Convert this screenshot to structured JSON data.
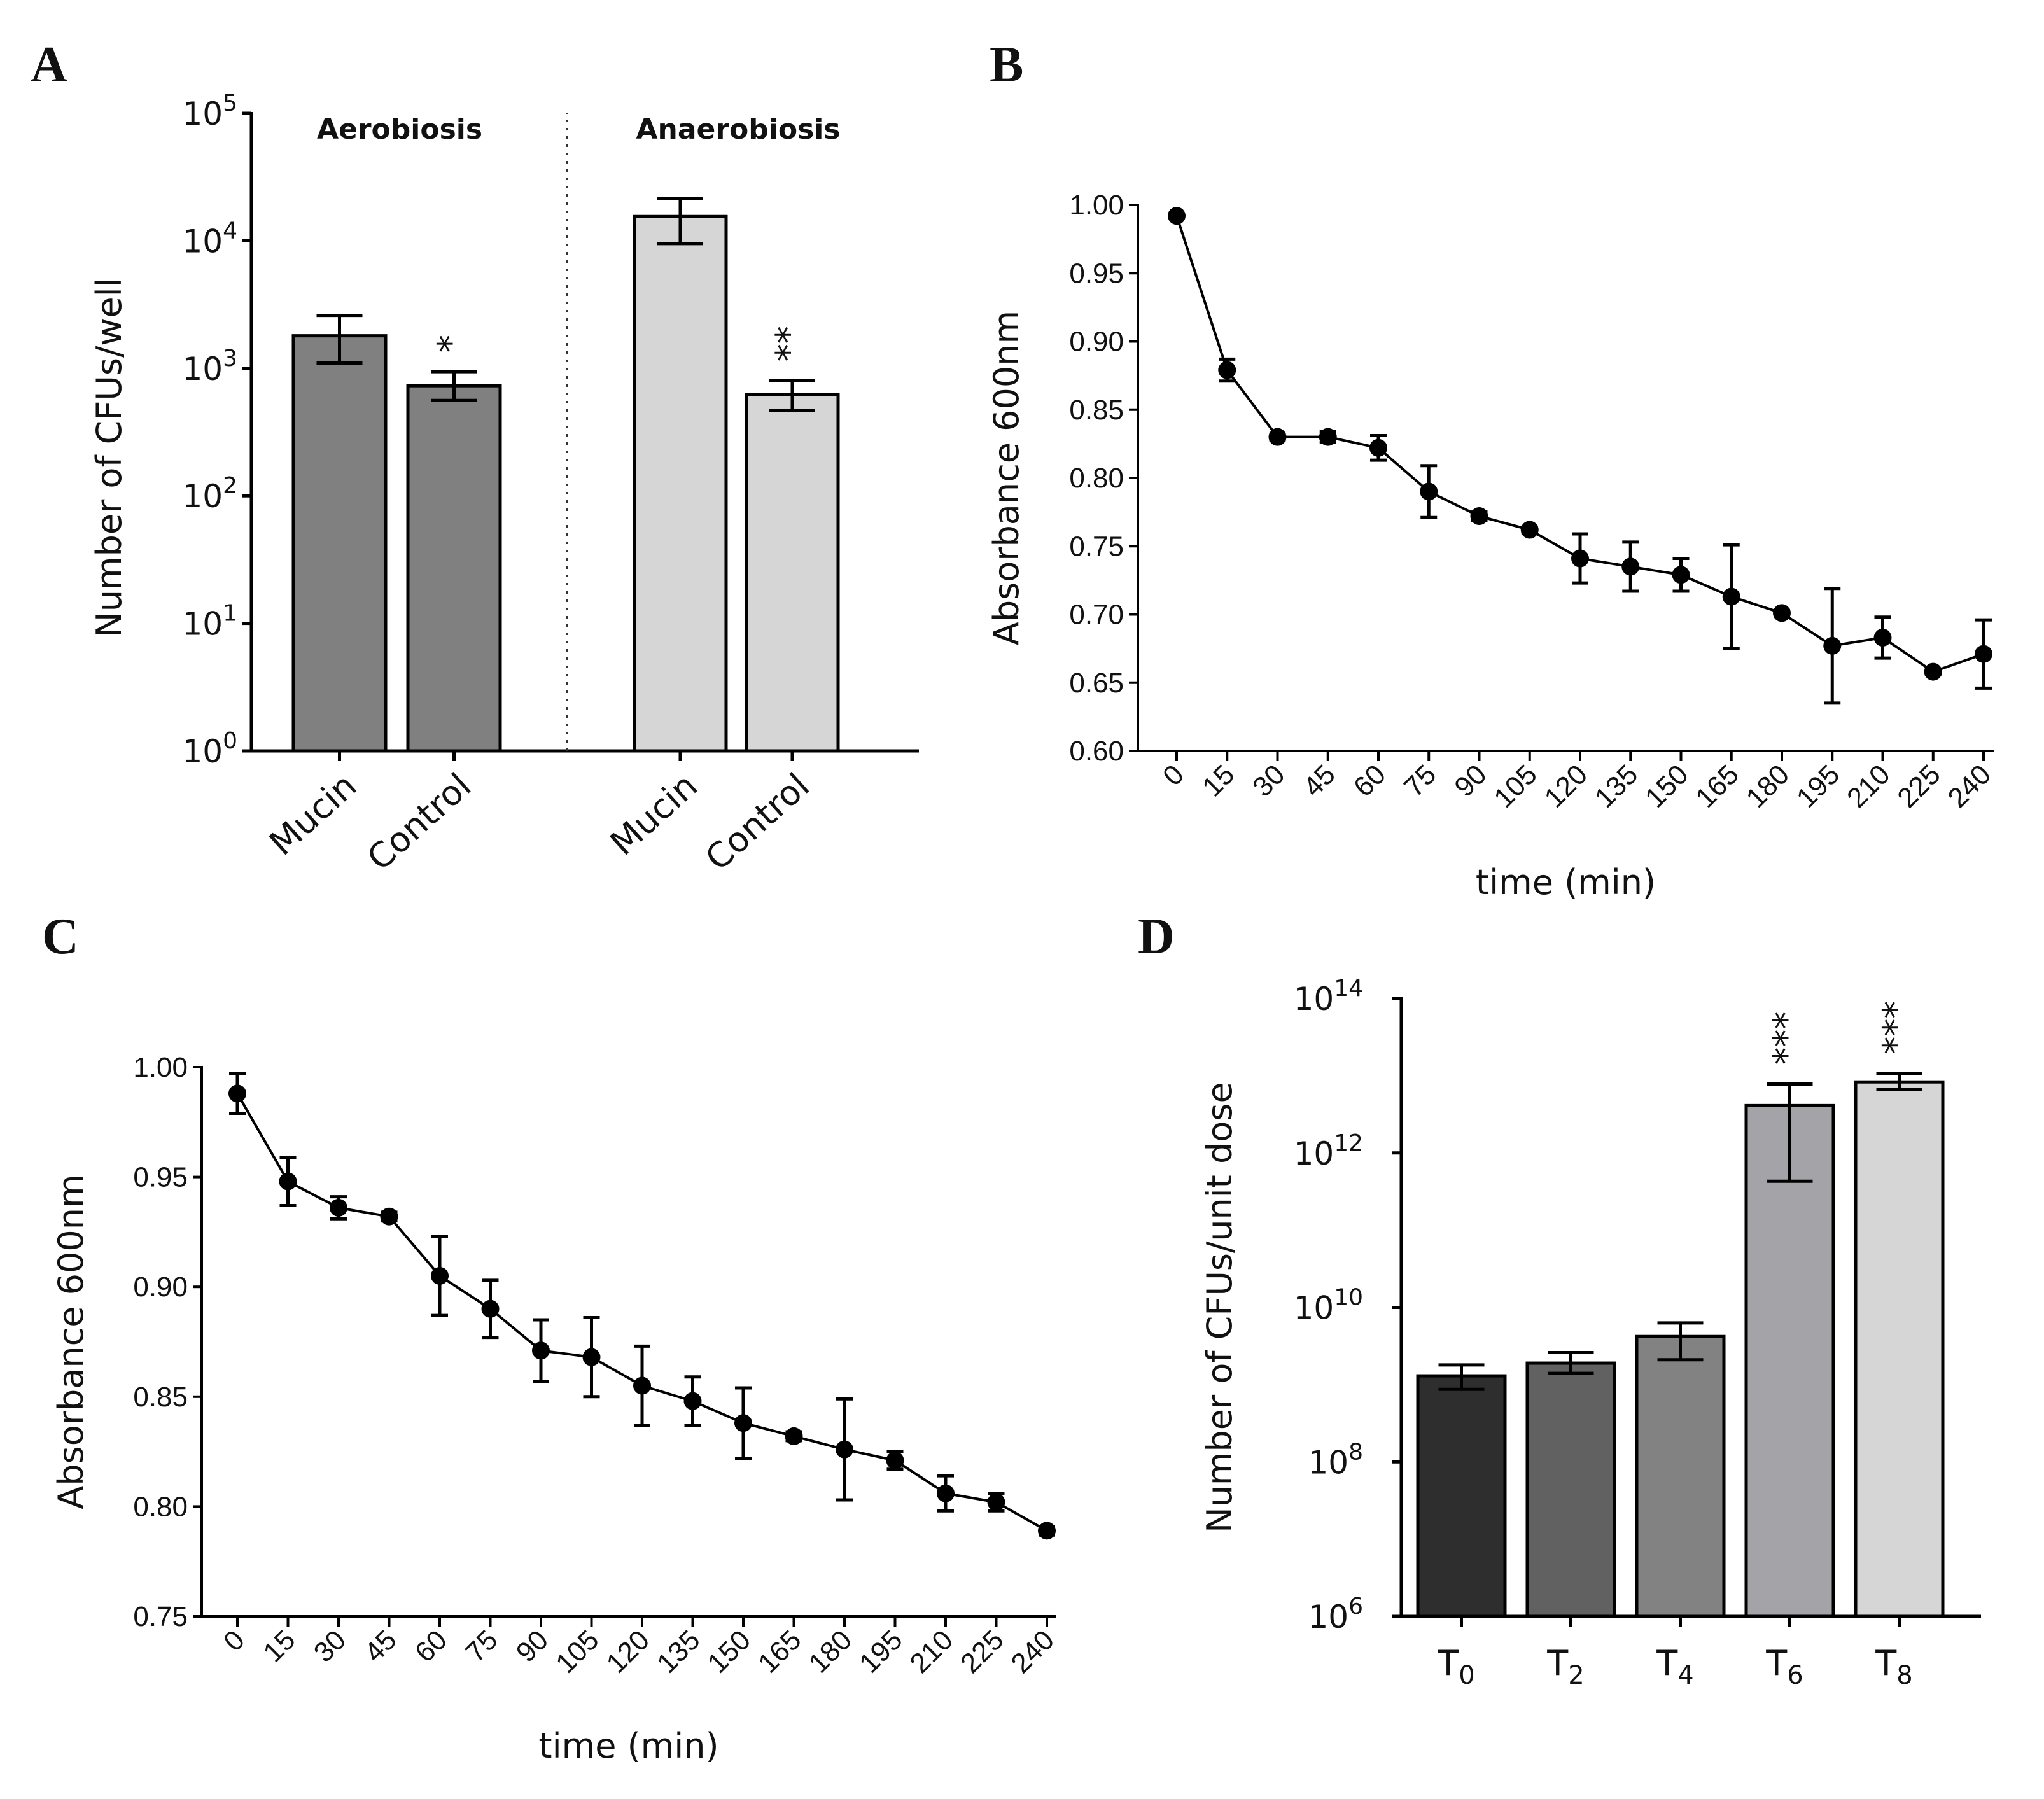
{
  "chart_data": [
    {
      "panel": "A",
      "type": "bar",
      "title": "",
      "ylabel": "Number of CFUs/well",
      "yscale": "log",
      "ylim": [
        1,
        100000
      ],
      "yticks": [
        {
          "base": "10",
          "exp": "0"
        },
        {
          "base": "10",
          "exp": "1"
        },
        {
          "base": "10",
          "exp": "2"
        },
        {
          "base": "10",
          "exp": "3"
        },
        {
          "base": "10",
          "exp": "4"
        },
        {
          "base": "10",
          "exp": "5"
        }
      ],
      "groups": [
        "Aerobiosis",
        "Anaerobiosis"
      ],
      "categories": [
        "Mucin",
        "Control",
        "Mucin",
        "Control"
      ],
      "group_of_category": [
        0,
        0,
        1,
        1
      ],
      "values": [
        1800,
        730,
        15500,
        620
      ],
      "err_low": [
        1100,
        560,
        9500,
        470
      ],
      "err_high": [
        2600,
        940,
        21500,
        800
      ],
      "significance": [
        "",
        "*",
        "",
        "**"
      ],
      "colors": [
        "#808080",
        "#808080",
        "#d6d6d6",
        "#d6d6d6"
      ]
    },
    {
      "panel": "B",
      "type": "line",
      "xlabel": "time (min)",
      "ylabel": "Absorbance 600nm",
      "ylim": [
        0.6,
        1.0
      ],
      "yticks": [
        "0.60",
        "0.65",
        "0.70",
        "0.75",
        "0.80",
        "0.85",
        "0.90",
        "0.95",
        "1.00"
      ],
      "x": [
        "0",
        "15",
        "30",
        "45",
        "60",
        "75",
        "90",
        "105",
        "120",
        "135",
        "150",
        "165",
        "180",
        "195",
        "210",
        "225",
        "240"
      ],
      "values": [
        0.992,
        0.879,
        0.83,
        0.83,
        0.822,
        0.79,
        0.772,
        0.762,
        0.741,
        0.735,
        0.729,
        0.713,
        0.701,
        0.677,
        0.683,
        0.658,
        0.671
      ],
      "err": [
        0.0,
        0.008,
        0.002,
        0.004,
        0.009,
        0.019,
        0.003,
        0.002,
        0.018,
        0.018,
        0.012,
        0.038,
        0.002,
        0.042,
        0.015,
        0.002,
        0.025
      ]
    },
    {
      "panel": "C",
      "type": "line",
      "xlabel": "time (min)",
      "ylabel": "Absorbance 600nm",
      "ylim": [
        0.75,
        1.0
      ],
      "yticks": [
        "0.75",
        "0.80",
        "0.85",
        "0.90",
        "0.95",
        "1.00"
      ],
      "x": [
        "0",
        "15",
        "30",
        "45",
        "60",
        "75",
        "90",
        "105",
        "120",
        "135",
        "150",
        "165",
        "180",
        "195",
        "210",
        "225",
        "240"
      ],
      "values": [
        0.988,
        0.948,
        0.936,
        0.932,
        0.905,
        0.89,
        0.871,
        0.868,
        0.855,
        0.848,
        0.838,
        0.832,
        0.826,
        0.821,
        0.806,
        0.802,
        0.789
      ],
      "err": [
        0.009,
        0.011,
        0.005,
        0.002,
        0.018,
        0.013,
        0.014,
        0.018,
        0.018,
        0.011,
        0.016,
        0.002,
        0.023,
        0.004,
        0.008,
        0.004,
        0.002
      ]
    },
    {
      "panel": "D",
      "type": "bar",
      "ylabel": "Number of CFUs/unit dose",
      "yscale": "log",
      "ylim": [
        1000000,
        100000000000000
      ],
      "yticks": [
        {
          "base": "10",
          "exp": "6"
        },
        {
          "base": "10",
          "exp": "8"
        },
        {
          "base": "10",
          "exp": "10"
        },
        {
          "base": "10",
          "exp": "12"
        },
        {
          "base": "10",
          "exp": "14"
        }
      ],
      "categories": [
        {
          "base": "T",
          "sub": "0"
        },
        {
          "base": "T",
          "sub": "2"
        },
        {
          "base": "T",
          "sub": "4"
        },
        {
          "base": "T",
          "sub": "6"
        },
        {
          "base": "T",
          "sub": "8"
        }
      ],
      "values": [
        1300000000.0,
        1900000000.0,
        4200000000.0,
        4100000000000.0,
        8300000000000.0
      ],
      "err_low": [
        870000000.0,
        1400000000.0,
        2100000000.0,
        430000000000.0,
        6600000000000.0
      ],
      "err_high": [
        1800000000.0,
        2600000000.0,
        6300000000.0,
        7800000000000.0,
        10700000000000.0
      ],
      "significance": [
        "",
        "",
        "",
        "***",
        "***"
      ],
      "colors": [
        "#2e2e2e",
        "#616161",
        "#828282",
        "#a4a4a8",
        "#d6d6d6"
      ]
    }
  ]
}
